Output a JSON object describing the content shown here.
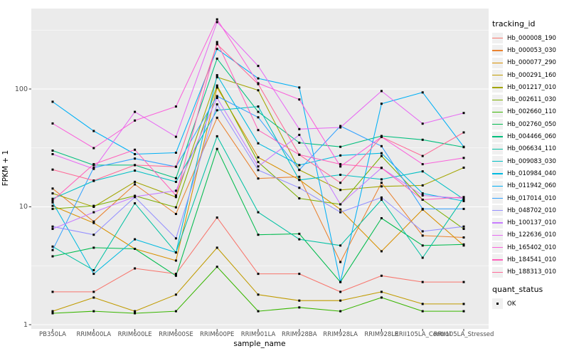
{
  "style": {
    "panel_bg": "#EBEBEB",
    "grid_color": "#FFFFFF",
    "tick_color": "#333333",
    "axis_text_color": "#4D4D4D",
    "point_color": "#000000",
    "legend_key_bg": "#F0F0F0"
  },
  "legend": {
    "tracking_title": "tracking_id",
    "quant_title": "quant_status",
    "quant_items": [
      {
        "label": "OK",
        "shape": "black-square"
      }
    ]
  },
  "chart_data": {
    "type": "line",
    "title": "",
    "xlabel": "sample_name",
    "ylabel": "FPKM + 1",
    "yscale": "log10",
    "yticks": [
      1,
      10,
      100
    ],
    "ylim": [
      1,
      480
    ],
    "grid": "white major and minor gridlines on gray panel",
    "legend_position": "right",
    "marker": "black point at every vertex (quant_status OK)",
    "categories": [
      "PB350LA",
      "RRIM600LA",
      "RRIM600LE",
      "RRIM600SE",
      "RRIM600PE",
      "RRIM901LA",
      "RRIM928BA",
      "RRIM928LA",
      "RRIM928LE",
      "RRII105LA_Control",
      "RRII105LA_Stressed"
    ],
    "series": [
      {
        "name": "Hb_000008_190",
        "color": "#F8766D",
        "values": [
          1.9,
          1.9,
          3.0,
          2.7,
          8.1,
          2.7,
          2.7,
          1.9,
          2.6,
          2.3,
          2.3
        ]
      },
      {
        "name": "Hb_000053_030",
        "color": "#EA8331",
        "values": [
          14.3,
          7.5,
          15.5,
          8.7,
          57,
          17.4,
          18,
          3.4,
          16,
          5.7,
          5.5
        ]
      },
      {
        "name": "Hb_000077_290",
        "color": "#D89000",
        "values": [
          10.2,
          7.3,
          4.4,
          3.5,
          103,
          26.3,
          17,
          9.5,
          4.2,
          9.5,
          4.7
        ]
      },
      {
        "name": "Hb_000291_160",
        "color": "#C09B00",
        "values": [
          1.3,
          1.7,
          1.3,
          1.8,
          4.5,
          1.8,
          1.6,
          1.6,
          1.9,
          1.5,
          1.5
        ]
      },
      {
        "name": "Hb_001217_010",
        "color": "#A3A500",
        "values": [
          13,
          10,
          16.3,
          12.1,
          126,
          97.5,
          20.6,
          13.9,
          14.9,
          15.2,
          21.5
        ]
      },
      {
        "name": "Hb_002611_030",
        "color": "#7CAE00",
        "values": [
          9.6,
          10.2,
          12.4,
          9.9,
          107,
          24,
          11.8,
          10.5,
          27,
          11.5,
          6.5
        ]
      },
      {
        "name": "Hb_002660_110",
        "color": "#39B600",
        "values": [
          1.25,
          1.3,
          1.25,
          1.3,
          3.1,
          1.3,
          1.4,
          1.3,
          1.7,
          1.3,
          1.3
        ]
      },
      {
        "name": "Hb_002760_050",
        "color": "#00BB4E",
        "values": [
          3.8,
          4.5,
          4.4,
          2.6,
          31,
          5.8,
          5.9,
          2.3,
          8.0,
          4.7,
          4.8
        ]
      },
      {
        "name": "Hb_004466_060",
        "color": "#00BF7D",
        "values": [
          30,
          22.6,
          22.6,
          17.5,
          181,
          64,
          35,
          32.3,
          39.9,
          37.1,
          32.1
        ]
      },
      {
        "name": "Hb_006634_110",
        "color": "#00C1A3",
        "values": [
          4.6,
          2.9,
          10.7,
          4.1,
          39.7,
          9.0,
          5.3,
          4.7,
          11.5,
          3.7,
          12.0
        ]
      },
      {
        "name": "Hb_009083_030",
        "color": "#00BFC4",
        "values": [
          11.7,
          16.6,
          20.3,
          16.3,
          66,
          71,
          16.9,
          18.7,
          17.1,
          20,
          11.6
        ]
      },
      {
        "name": "Hb_010984_040",
        "color": "#00BAE0",
        "values": [
          10.9,
          2.7,
          5.3,
          4.1,
          131,
          34.6,
          22.6,
          27.3,
          28.5,
          13,
          11.2
        ]
      },
      {
        "name": "Hb_011942_060",
        "color": "#00B0F6",
        "values": [
          78,
          44,
          28,
          28.8,
          219,
          123,
          103,
          2.3,
          75,
          93.5,
          32.3
        ]
      },
      {
        "name": "Hb_017014_010",
        "color": "#35A2FF",
        "values": [
          4.3,
          21.5,
          25.7,
          21.9,
          87,
          57.5,
          20.6,
          48.5,
          32.7,
          9.6,
          9.6
        ]
      },
      {
        "name": "Hb_048702_010",
        "color": "#9590FF",
        "values": [
          6.8,
          5.8,
          12.1,
          5.4,
          74,
          20.5,
          14.5,
          9.0,
          12.0,
          6.2,
          6.8
        ]
      },
      {
        "name": "Hb_100137_010",
        "color": "#C77CFF",
        "values": [
          6.5,
          9.0,
          12.2,
          13.7,
          84,
          22,
          40.8,
          10.5,
          21.4,
          12.5,
          11.8
        ]
      },
      {
        "name": "Hb_122636_010",
        "color": "#E76BF3",
        "values": [
          28,
          21,
          64,
          39.3,
          370,
          157,
          45.7,
          47.2,
          96,
          50.8,
          62.6
        ]
      },
      {
        "name": "Hb_165402_010",
        "color": "#FA62DB",
        "values": [
          51,
          31.5,
          54,
          71,
          390,
          112,
          81.5,
          22,
          39.2,
          23,
          26
        ]
      },
      {
        "name": "Hb_184541_010",
        "color": "#FF62BC",
        "values": [
          11.3,
          23,
          30.5,
          12.5,
          250,
          44.8,
          27.7,
          23,
          21.4,
          11.5,
          12.1
        ]
      },
      {
        "name": "Hb_188313_010",
        "color": "#FF6A98",
        "values": [
          20.7,
          16.7,
          22.6,
          21.9,
          240,
          110,
          27.7,
          16,
          39.2,
          27,
          42.8
        ]
      }
    ]
  }
}
